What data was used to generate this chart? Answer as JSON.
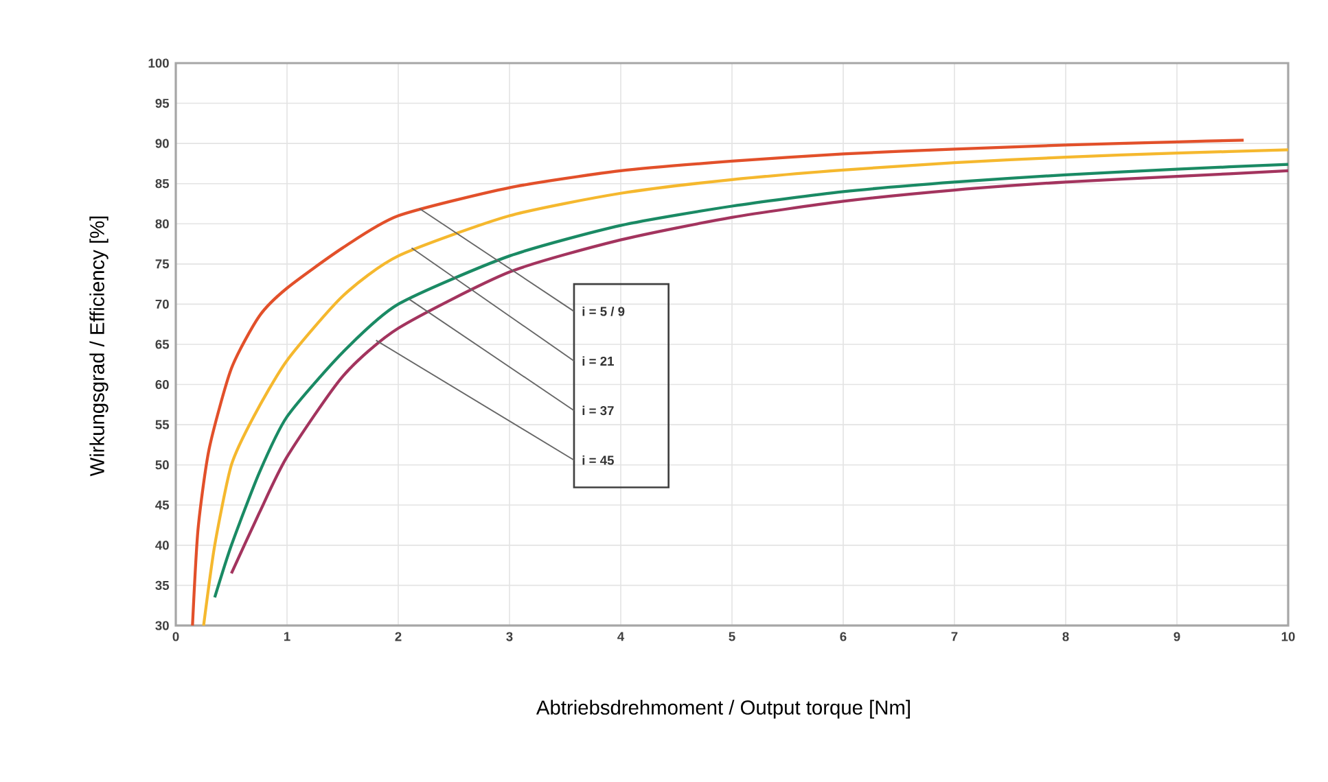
{
  "chart_data": {
    "type": "line",
    "xlabel": "Abtriebsdrehmoment / Output torque [Nm]",
    "ylabel": "Wirkungsgrad / Efficiency [%]",
    "xlim": [
      0,
      10
    ],
    "ylim": [
      30,
      100
    ],
    "xticks": [
      0,
      1,
      2,
      3,
      4,
      5,
      6,
      7,
      8,
      9,
      10
    ],
    "yticks": [
      30,
      35,
      40,
      45,
      50,
      55,
      60,
      65,
      70,
      75,
      80,
      85,
      90,
      95,
      100
    ],
    "grid": true,
    "series": [
      {
        "color": "#e2502a",
        "x": [
          0.15,
          0.2,
          0.3,
          0.5,
          0.75,
          1,
          1.5,
          2,
          3,
          4,
          5,
          6,
          7,
          8,
          9,
          9.6
        ],
        "values": [
          30,
          42,
          52,
          62,
          68.5,
          72,
          77,
          81,
          84.5,
          86.6,
          87.8,
          88.7,
          89.3,
          89.8,
          90.2,
          90.4
        ]
      },
      {
        "color": "#f5b82e",
        "x": [
          0.25,
          0.35,
          0.5,
          0.7,
          1,
          1.5,
          2,
          3,
          4,
          5,
          6,
          7,
          8,
          9,
          10
        ],
        "values": [
          30,
          40,
          50,
          56,
          63,
          71,
          76,
          81,
          83.8,
          85.5,
          86.7,
          87.6,
          88.3,
          88.8,
          89.2
        ]
      },
      {
        "color": "#1a8a64",
        "x": [
          0.35,
          0.5,
          0.75,
          1,
          1.5,
          2,
          3,
          4,
          5,
          6,
          7,
          8,
          9,
          10
        ],
        "values": [
          33.5,
          40,
          49,
          56,
          64,
          70,
          76,
          79.8,
          82.2,
          84,
          85.2,
          86.1,
          86.8,
          87.4
        ]
      },
      {
        "color": "#a3345e",
        "x": [
          0.5,
          0.75,
          1,
          1.5,
          2,
          3,
          4,
          5,
          6,
          7,
          8,
          9,
          10
        ],
        "values": [
          36.5,
          44,
          51,
          61,
          67,
          74,
          78,
          80.8,
          82.8,
          84.2,
          85.2,
          85.9,
          86.6
        ]
      }
    ],
    "annotations": [
      {
        "text": "i = 5 / 9",
        "x": 2.19,
        "y": 81.9
      },
      {
        "text": "i = 21",
        "x": 2.12,
        "y": 77
      },
      {
        "text": "i = 37",
        "x": 2.1,
        "y": 70.6
      },
      {
        "text": "i = 45",
        "x": 1.8,
        "y": 65.5
      }
    ]
  }
}
